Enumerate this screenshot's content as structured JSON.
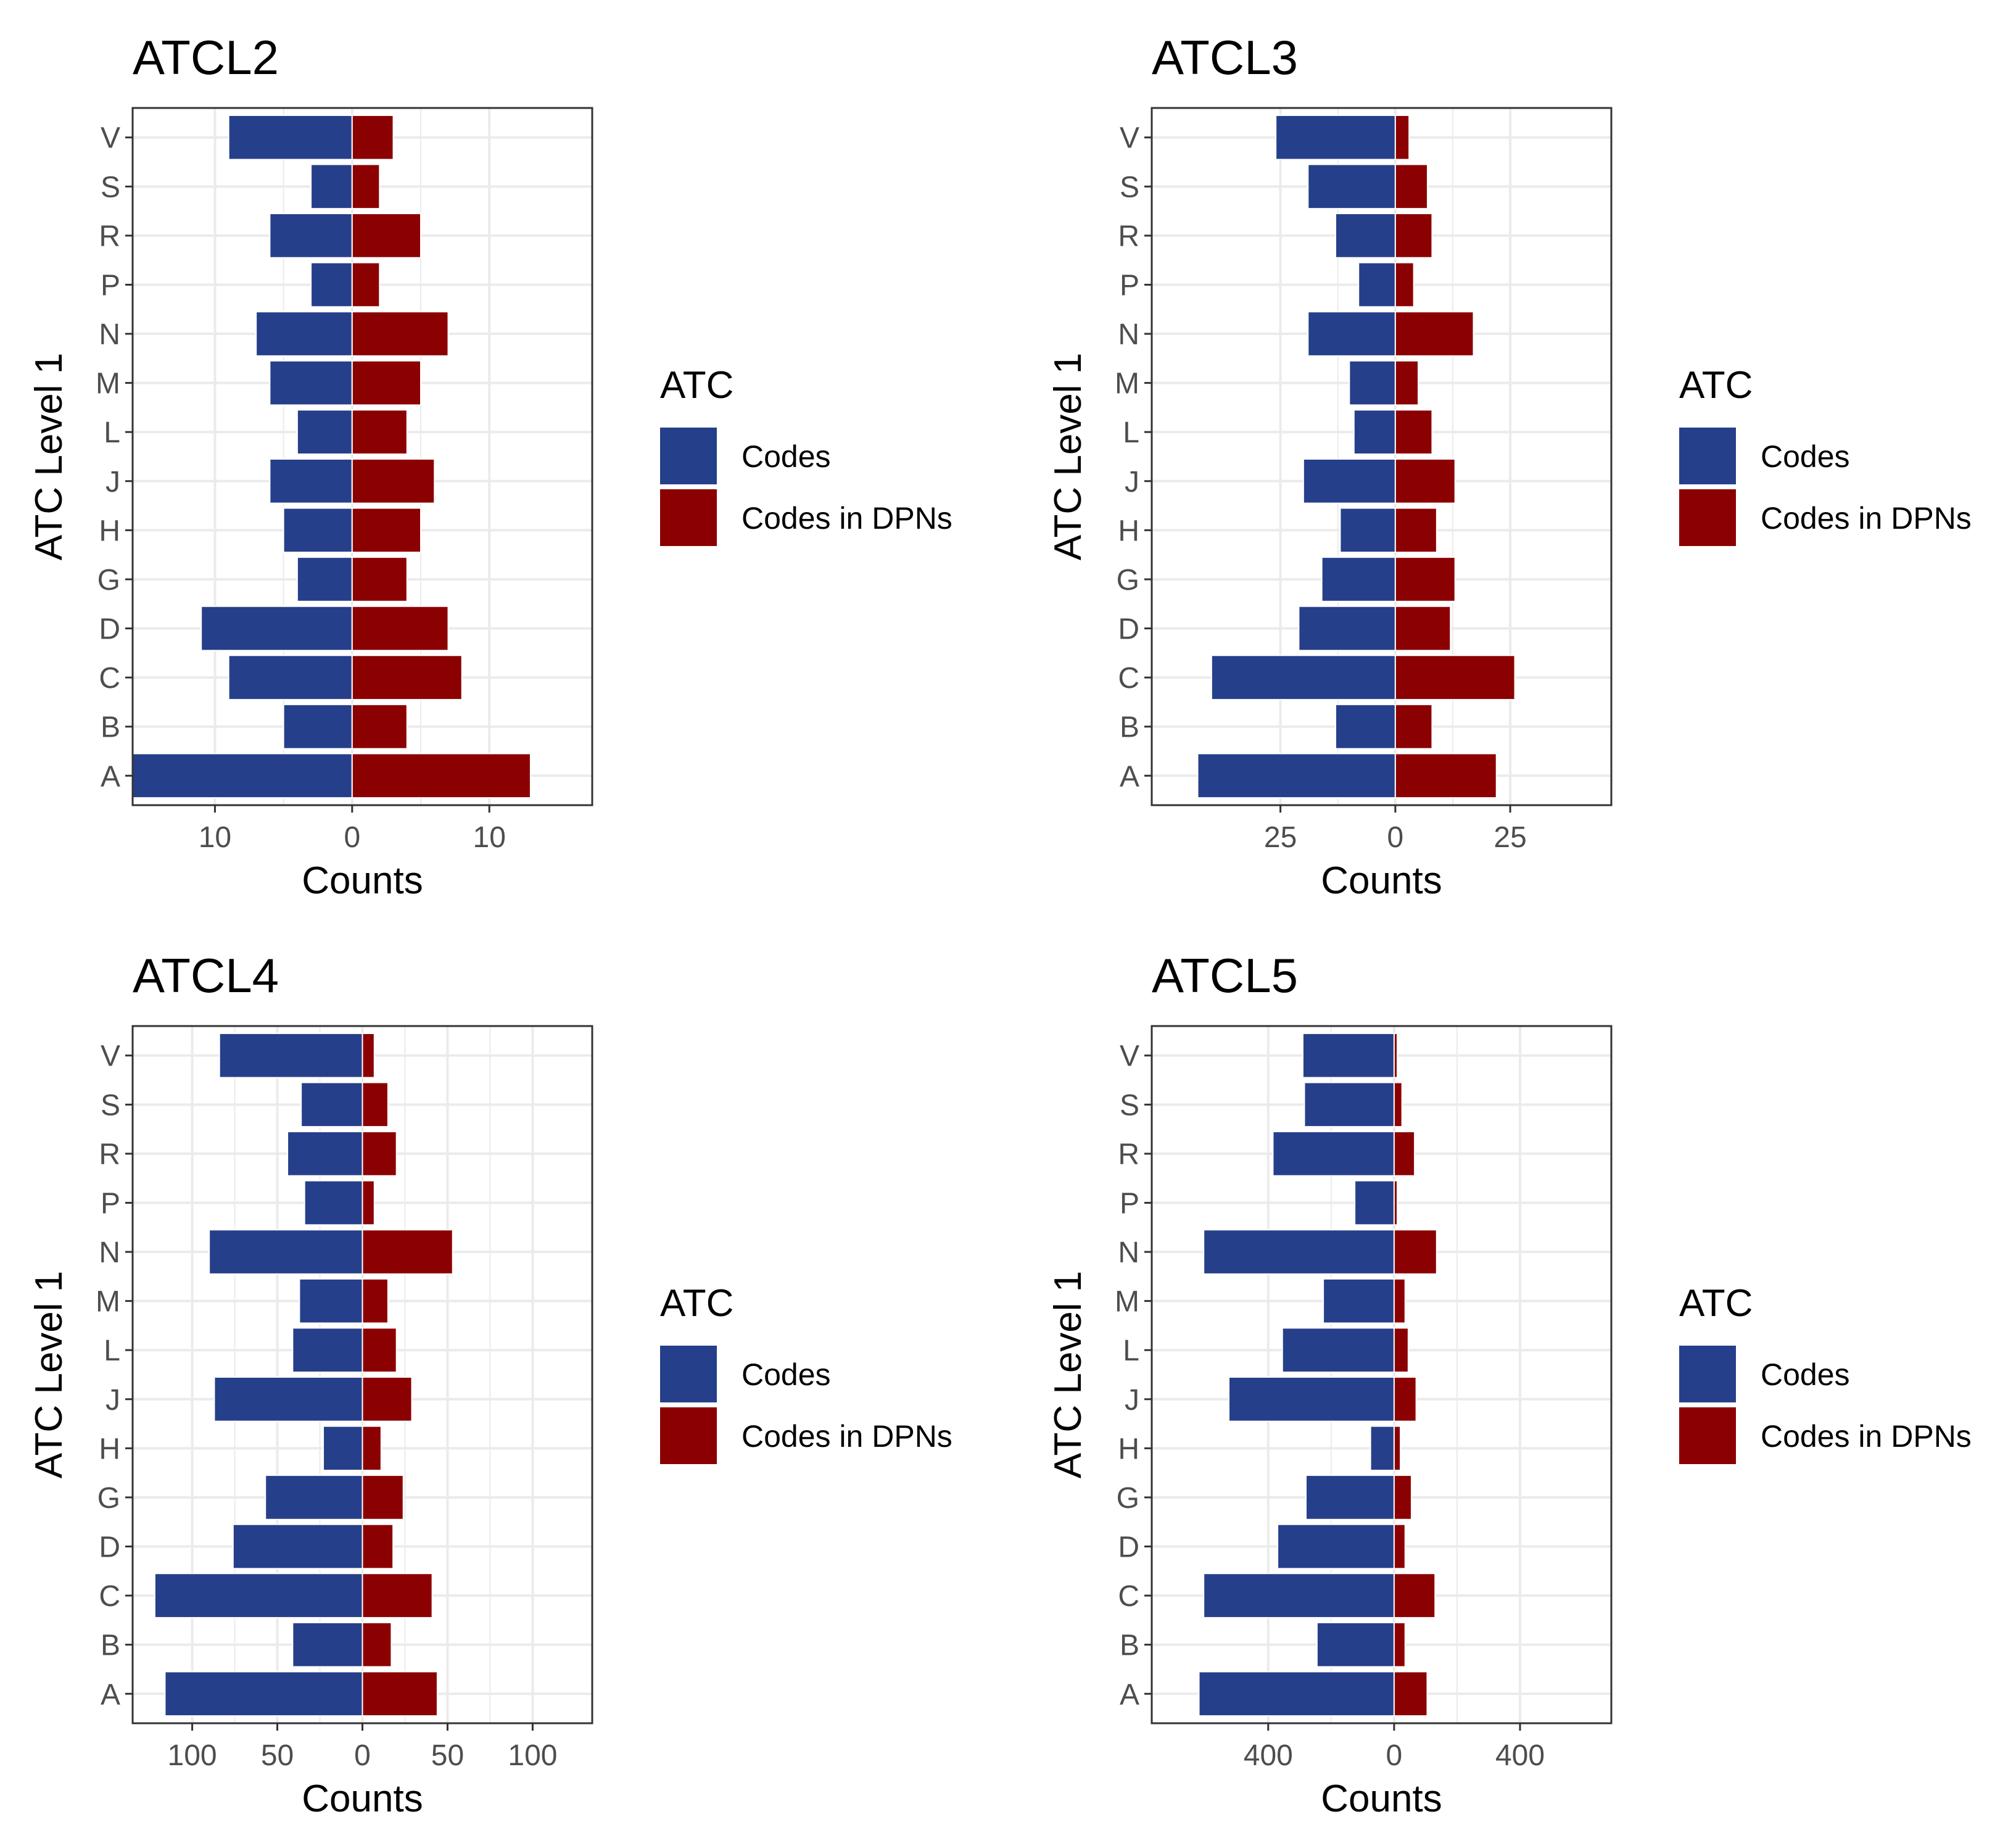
{
  "colors": {
    "codes": "#263f8a",
    "codes_in_dpns": "#8b0000",
    "panel_border": "#333333",
    "grid": "#ebebeb"
  },
  "chart_data": [
    {
      "type": "bar",
      "title": "ATCL2",
      "xlabel": "Counts",
      "ylabel": "ATC Level 1",
      "categories": [
        "A",
        "B",
        "C",
        "D",
        "G",
        "H",
        "J",
        "L",
        "M",
        "N",
        "P",
        "R",
        "S",
        "V"
      ],
      "xlim": [
        -16,
        17.5
      ],
      "xticks": [
        -10,
        0,
        10
      ],
      "xtick_labels": [
        "10",
        "0",
        "10"
      ],
      "legend": {
        "title": "ATC",
        "position": "right"
      },
      "series": [
        {
          "name": "Codes",
          "direction": "left",
          "values": [
            16,
            5,
            9,
            11,
            4,
            5,
            6,
            4,
            6,
            7,
            3,
            6,
            3,
            9
          ]
        },
        {
          "name": "Codes in DPNs",
          "direction": "right",
          "values": [
            13,
            4,
            8,
            7,
            4,
            5,
            6,
            4,
            5,
            7,
            2,
            5,
            2,
            3
          ]
        }
      ]
    },
    {
      "type": "bar",
      "title": "ATCL3",
      "xlabel": "Counts",
      "ylabel": "ATC Level 1",
      "categories": [
        "A",
        "B",
        "C",
        "D",
        "G",
        "H",
        "J",
        "L",
        "M",
        "N",
        "P",
        "R",
        "S",
        "V"
      ],
      "xlim": [
        -53,
        47
      ],
      "xticks": [
        -25,
        0,
        25
      ],
      "xtick_labels": [
        "25",
        "0",
        "25"
      ],
      "legend": {
        "title": "ATC",
        "position": "right"
      },
      "series": [
        {
          "name": "Codes",
          "direction": "left",
          "values": [
            43,
            13,
            40,
            21,
            16,
            12,
            20,
            9,
            10,
            19,
            8,
            13,
            19,
            26
          ]
        },
        {
          "name": "Codes in DPNs",
          "direction": "right",
          "values": [
            22,
            8,
            26,
            12,
            13,
            9,
            13,
            8,
            5,
            17,
            4,
            8,
            7,
            3
          ]
        }
      ]
    },
    {
      "type": "bar",
      "title": "ATCL4",
      "xlabel": "Counts",
      "ylabel": "ATC Level 1",
      "categories": [
        "A",
        "B",
        "C",
        "D",
        "G",
        "H",
        "J",
        "L",
        "M",
        "N",
        "P",
        "R",
        "S",
        "V"
      ],
      "xlim": [
        -135,
        135
      ],
      "xticks": [
        -100,
        -50,
        0,
        50,
        100
      ],
      "xtick_labels": [
        "100",
        "50",
        "0",
        "50",
        "100"
      ],
      "legend": {
        "title": "ATC",
        "position": "right"
      },
      "series": [
        {
          "name": "Codes",
          "direction": "left",
          "values": [
            116,
            41,
            122,
            76,
            57,
            23,
            87,
            41,
            37,
            90,
            34,
            44,
            36,
            84
          ]
        },
        {
          "name": "Codes in DPNs",
          "direction": "right",
          "values": [
            44,
            17,
            41,
            18,
            24,
            11,
            29,
            20,
            15,
            53,
            7,
            20,
            15,
            7
          ]
        }
      ]
    },
    {
      "type": "bar",
      "title": "ATCL5",
      "xlabel": "Counts",
      "ylabel": "ATC Level 1",
      "categories": [
        "A",
        "B",
        "C",
        "D",
        "G",
        "H",
        "J",
        "L",
        "M",
        "N",
        "P",
        "R",
        "S",
        "V"
      ],
      "xlim": [
        -770,
        690
      ],
      "xticks": [
        -400,
        0,
        400
      ],
      "xtick_labels": [
        "400",
        "0",
        "400"
      ],
      "legend": {
        "title": "ATC",
        "position": "right"
      },
      "series": [
        {
          "name": "Codes",
          "direction": "left",
          "values": [
            620,
            245,
            605,
            370,
            280,
            75,
            525,
            355,
            225,
            605,
            125,
            385,
            285,
            290
          ]
        },
        {
          "name": "Codes in DPNs",
          "direction": "right",
          "values": [
            105,
            35,
            130,
            35,
            55,
            20,
            70,
            45,
            35,
            135,
            10,
            65,
            25,
            10
          ]
        }
      ]
    }
  ]
}
